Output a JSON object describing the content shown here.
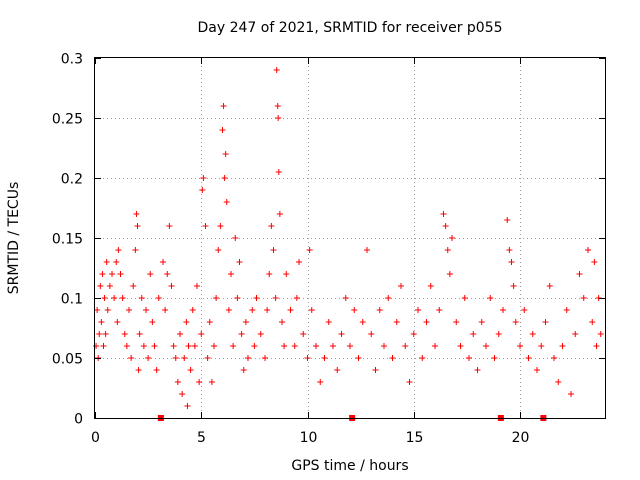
{
  "chart_data": {
    "type": "scatter",
    "title": "Day 247 of 2021, SRMTID for receiver p055",
    "xlabel": "GPS time / hours",
    "ylabel": "SRMTID / TECUs",
    "xlim": [
      0,
      24
    ],
    "ylim": [
      0,
      0.3
    ],
    "x_ticks": [
      0,
      5,
      10,
      15,
      20
    ],
    "x_tick_labels": [
      "0",
      "5",
      "10",
      "15",
      "20"
    ],
    "y_ticks": [
      0,
      0.05,
      0.1,
      0.15,
      0.2,
      0.25,
      0.3
    ],
    "y_tick_labels": [
      "0",
      "0.05",
      "0.1",
      "0.15",
      "0.2",
      "0.25",
      "0.3"
    ],
    "grid": true,
    "marker": "+",
    "color": "#ff0000",
    "data_gap_markers_x": [
      3.1,
      12.1,
      19.1,
      21.1
    ],
    "series": [
      {
        "name": "SRMTID",
        "points": [
          [
            0.05,
            0.06
          ],
          [
            0.1,
            0.09
          ],
          [
            0.15,
            0.05
          ],
          [
            0.2,
            0.07
          ],
          [
            0.25,
            0.11
          ],
          [
            0.3,
            0.08
          ],
          [
            0.35,
            0.12
          ],
          [
            0.4,
            0.06
          ],
          [
            0.45,
            0.1
          ],
          [
            0.5,
            0.07
          ],
          [
            0.55,
            0.13
          ],
          [
            0.6,
            0.09
          ],
          [
            0.7,
            0.11
          ],
          [
            0.8,
            0.12
          ],
          [
            0.9,
            0.1
          ],
          [
            1.0,
            0.13
          ],
          [
            1.05,
            0.08
          ],
          [
            1.1,
            0.14
          ],
          [
            1.2,
            0.12
          ],
          [
            1.3,
            0.1
          ],
          [
            1.4,
            0.07
          ],
          [
            1.5,
            0.06
          ],
          [
            1.6,
            0.09
          ],
          [
            1.7,
            0.05
          ],
          [
            1.8,
            0.11
          ],
          [
            1.9,
            0.14
          ],
          [
            1.95,
            0.17
          ],
          [
            2.0,
            0.16
          ],
          [
            2.05,
            0.04
          ],
          [
            2.1,
            0.07
          ],
          [
            2.2,
            0.1
          ],
          [
            2.3,
            0.06
          ],
          [
            2.4,
            0.09
          ],
          [
            2.5,
            0.05
          ],
          [
            2.6,
            0.12
          ],
          [
            2.7,
            0.08
          ],
          [
            2.8,
            0.06
          ],
          [
            2.9,
            0.04
          ],
          [
            3.0,
            0.1
          ],
          [
            3.2,
            0.13
          ],
          [
            3.3,
            0.09
          ],
          [
            3.4,
            0.12
          ],
          [
            3.5,
            0.16
          ],
          [
            3.6,
            0.11
          ],
          [
            3.7,
            0.06
          ],
          [
            3.8,
            0.05
          ],
          [
            3.9,
            0.03
          ],
          [
            4.0,
            0.07
          ],
          [
            4.1,
            0.02
          ],
          [
            4.2,
            0.05
          ],
          [
            4.3,
            0.08
          ],
          [
            4.35,
            0.01
          ],
          [
            4.4,
            0.06
          ],
          [
            4.5,
            0.04
          ],
          [
            4.6,
            0.09
          ],
          [
            4.7,
            0.06
          ],
          [
            4.8,
            0.11
          ],
          [
            4.9,
            0.03
          ],
          [
            5.0,
            0.07
          ],
          [
            5.05,
            0.19
          ],
          [
            5.1,
            0.2
          ],
          [
            5.2,
            0.16
          ],
          [
            5.3,
            0.05
          ],
          [
            5.4,
            0.08
          ],
          [
            5.5,
            0.03
          ],
          [
            5.6,
            0.06
          ],
          [
            5.7,
            0.1
          ],
          [
            5.8,
            0.14
          ],
          [
            5.9,
            0.16
          ],
          [
            6.0,
            0.24
          ],
          [
            6.05,
            0.26
          ],
          [
            6.1,
            0.2
          ],
          [
            6.15,
            0.22
          ],
          [
            6.2,
            0.18
          ],
          [
            6.3,
            0.09
          ],
          [
            6.4,
            0.12
          ],
          [
            6.5,
            0.06
          ],
          [
            6.6,
            0.15
          ],
          [
            6.7,
            0.1
          ],
          [
            6.8,
            0.13
          ],
          [
            6.9,
            0.07
          ],
          [
            7.0,
            0.04
          ],
          [
            7.1,
            0.08
          ],
          [
            7.2,
            0.05
          ],
          [
            7.4,
            0.09
          ],
          [
            7.5,
            0.06
          ],
          [
            7.6,
            0.1
          ],
          [
            7.8,
            0.07
          ],
          [
            8.0,
            0.05
          ],
          [
            8.1,
            0.09
          ],
          [
            8.2,
            0.12
          ],
          [
            8.3,
            0.16
          ],
          [
            8.4,
            0.14
          ],
          [
            8.5,
            0.1
          ],
          [
            8.55,
            0.29
          ],
          [
            8.6,
            0.26
          ],
          [
            8.62,
            0.25
          ],
          [
            8.65,
            0.205
          ],
          [
            8.7,
            0.17
          ],
          [
            8.8,
            0.08
          ],
          [
            8.9,
            0.06
          ],
          [
            9.0,
            0.12
          ],
          [
            9.2,
            0.09
          ],
          [
            9.4,
            0.06
          ],
          [
            9.5,
            0.1
          ],
          [
            9.6,
            0.13
          ],
          [
            9.8,
            0.07
          ],
          [
            10.0,
            0.05
          ],
          [
            10.1,
            0.14
          ],
          [
            10.2,
            0.09
          ],
          [
            10.4,
            0.06
          ],
          [
            10.6,
            0.03
          ],
          [
            10.8,
            0.05
          ],
          [
            11.0,
            0.08
          ],
          [
            11.2,
            0.06
          ],
          [
            11.4,
            0.04
          ],
          [
            11.6,
            0.07
          ],
          [
            11.8,
            0.1
          ],
          [
            12.0,
            0.06
          ],
          [
            12.2,
            0.09
          ],
          [
            12.4,
            0.05
          ],
          [
            12.6,
            0.08
          ],
          [
            12.8,
            0.14
          ],
          [
            13.0,
            0.07
          ],
          [
            13.2,
            0.04
          ],
          [
            13.4,
            0.09
          ],
          [
            13.6,
            0.06
          ],
          [
            13.8,
            0.1
          ],
          [
            14.0,
            0.05
          ],
          [
            14.2,
            0.08
          ],
          [
            14.4,
            0.11
          ],
          [
            14.6,
            0.06
          ],
          [
            14.8,
            0.03
          ],
          [
            15.0,
            0.07
          ],
          [
            15.2,
            0.09
          ],
          [
            15.4,
            0.05
          ],
          [
            15.6,
            0.08
          ],
          [
            15.8,
            0.11
          ],
          [
            16.0,
            0.06
          ],
          [
            16.2,
            0.09
          ],
          [
            16.4,
            0.17
          ],
          [
            16.5,
            0.16
          ],
          [
            16.6,
            0.14
          ],
          [
            16.7,
            0.12
          ],
          [
            16.8,
            0.15
          ],
          [
            17.0,
            0.08
          ],
          [
            17.2,
            0.06
          ],
          [
            17.4,
            0.1
          ],
          [
            17.6,
            0.05
          ],
          [
            17.8,
            0.07
          ],
          [
            18.0,
            0.04
          ],
          [
            18.2,
            0.08
          ],
          [
            18.4,
            0.06
          ],
          [
            18.6,
            0.1
          ],
          [
            18.8,
            0.05
          ],
          [
            19.0,
            0.07
          ],
          [
            19.2,
            0.09
          ],
          [
            19.4,
            0.165
          ],
          [
            19.5,
            0.14
          ],
          [
            19.6,
            0.13
          ],
          [
            19.7,
            0.11
          ],
          [
            19.8,
            0.08
          ],
          [
            20.0,
            0.06
          ],
          [
            20.2,
            0.09
          ],
          [
            20.4,
            0.05
          ],
          [
            20.6,
            0.07
          ],
          [
            20.8,
            0.04
          ],
          [
            21.0,
            0.06
          ],
          [
            21.2,
            0.08
          ],
          [
            21.4,
            0.11
          ],
          [
            21.6,
            0.05
          ],
          [
            21.8,
            0.03
          ],
          [
            22.0,
            0.06
          ],
          [
            22.2,
            0.09
          ],
          [
            22.4,
            0.02
          ],
          [
            22.6,
            0.07
          ],
          [
            22.8,
            0.12
          ],
          [
            23.0,
            0.1
          ],
          [
            23.2,
            0.14
          ],
          [
            23.4,
            0.08
          ],
          [
            23.5,
            0.13
          ],
          [
            23.6,
            0.06
          ],
          [
            23.7,
            0.1
          ],
          [
            23.8,
            0.07
          ]
        ]
      }
    ]
  }
}
